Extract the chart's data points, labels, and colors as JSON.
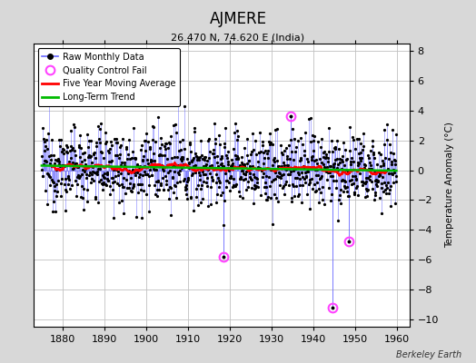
{
  "title": "AJMERE",
  "subtitle": "26.470 N, 74.620 E (India)",
  "ylabel": "Temperature Anomaly (°C)",
  "xlim": [
    1873,
    1963
  ],
  "ylim": [
    -10.5,
    8.5
  ],
  "yticks": [
    -10,
    -8,
    -6,
    -4,
    -2,
    0,
    2,
    4,
    6,
    8
  ],
  "xticks": [
    1880,
    1890,
    1900,
    1910,
    1920,
    1930,
    1940,
    1950,
    1960
  ],
  "bg_color": "#d8d8d8",
  "plot_bg_color": "#ffffff",
  "grid_color": "#c0c0c0",
  "raw_line_color": "#6666ff",
  "raw_dot_color": "#000000",
  "moving_avg_color": "#ff0000",
  "trend_color": "#00bb00",
  "qc_fail_color": "#ff44ff",
  "watermark": "Berkeley Earth",
  "seed": 12345,
  "start_year": 1875,
  "end_year": 1960,
  "trend_slope": -0.004,
  "trend_intercept": 0.15,
  "moving_avg_window": 60,
  "noise_std": 1.3,
  "qc_fail_points": [
    {
      "year": 1918.5,
      "value": -5.8
    },
    {
      "year": 1934.5,
      "value": 3.6
    },
    {
      "year": 1944.5,
      "value": -9.2
    },
    {
      "year": 1948.5,
      "value": -4.8
    }
  ]
}
